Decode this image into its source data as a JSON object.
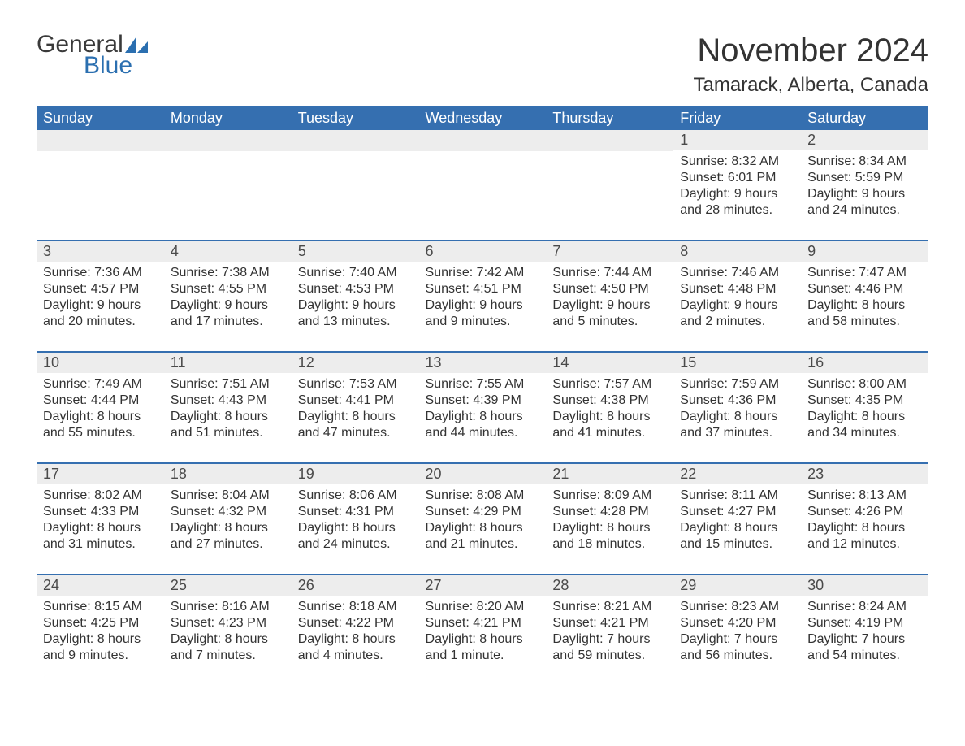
{
  "brand": {
    "word1": "General",
    "word2": "Blue",
    "accent_color": "#2b6fb0"
  },
  "title": "November 2024",
  "location": "Tamarack, Alberta, Canada",
  "colors": {
    "header_bg": "#356fb0",
    "header_text": "#ffffff",
    "daynum_bg": "#ededed",
    "row_border": "#356fb0",
    "body_text": "#333333",
    "page_bg": "#ffffff"
  },
  "day_labels": [
    "Sunday",
    "Monday",
    "Tuesday",
    "Wednesday",
    "Thursday",
    "Friday",
    "Saturday"
  ],
  "weeks": [
    [
      null,
      null,
      null,
      null,
      null,
      {
        "n": "1",
        "sunrise": "8:32 AM",
        "sunset": "6:01 PM",
        "daylight": "9 hours and 28 minutes."
      },
      {
        "n": "2",
        "sunrise": "8:34 AM",
        "sunset": "5:59 PM",
        "daylight": "9 hours and 24 minutes."
      }
    ],
    [
      {
        "n": "3",
        "sunrise": "7:36 AM",
        "sunset": "4:57 PM",
        "daylight": "9 hours and 20 minutes."
      },
      {
        "n": "4",
        "sunrise": "7:38 AM",
        "sunset": "4:55 PM",
        "daylight": "9 hours and 17 minutes."
      },
      {
        "n": "5",
        "sunrise": "7:40 AM",
        "sunset": "4:53 PM",
        "daylight": "9 hours and 13 minutes."
      },
      {
        "n": "6",
        "sunrise": "7:42 AM",
        "sunset": "4:51 PM",
        "daylight": "9 hours and 9 minutes."
      },
      {
        "n": "7",
        "sunrise": "7:44 AM",
        "sunset": "4:50 PM",
        "daylight": "9 hours and 5 minutes."
      },
      {
        "n": "8",
        "sunrise": "7:46 AM",
        "sunset": "4:48 PM",
        "daylight": "9 hours and 2 minutes."
      },
      {
        "n": "9",
        "sunrise": "7:47 AM",
        "sunset": "4:46 PM",
        "daylight": "8 hours and 58 minutes."
      }
    ],
    [
      {
        "n": "10",
        "sunrise": "7:49 AM",
        "sunset": "4:44 PM",
        "daylight": "8 hours and 55 minutes."
      },
      {
        "n": "11",
        "sunrise": "7:51 AM",
        "sunset": "4:43 PM",
        "daylight": "8 hours and 51 minutes."
      },
      {
        "n": "12",
        "sunrise": "7:53 AM",
        "sunset": "4:41 PM",
        "daylight": "8 hours and 47 minutes."
      },
      {
        "n": "13",
        "sunrise": "7:55 AM",
        "sunset": "4:39 PM",
        "daylight": "8 hours and 44 minutes."
      },
      {
        "n": "14",
        "sunrise": "7:57 AM",
        "sunset": "4:38 PM",
        "daylight": "8 hours and 41 minutes."
      },
      {
        "n": "15",
        "sunrise": "7:59 AM",
        "sunset": "4:36 PM",
        "daylight": "8 hours and 37 minutes."
      },
      {
        "n": "16",
        "sunrise": "8:00 AM",
        "sunset": "4:35 PM",
        "daylight": "8 hours and 34 minutes."
      }
    ],
    [
      {
        "n": "17",
        "sunrise": "8:02 AM",
        "sunset": "4:33 PM",
        "daylight": "8 hours and 31 minutes."
      },
      {
        "n": "18",
        "sunrise": "8:04 AM",
        "sunset": "4:32 PM",
        "daylight": "8 hours and 27 minutes."
      },
      {
        "n": "19",
        "sunrise": "8:06 AM",
        "sunset": "4:31 PM",
        "daylight": "8 hours and 24 minutes."
      },
      {
        "n": "20",
        "sunrise": "8:08 AM",
        "sunset": "4:29 PM",
        "daylight": "8 hours and 21 minutes."
      },
      {
        "n": "21",
        "sunrise": "8:09 AM",
        "sunset": "4:28 PM",
        "daylight": "8 hours and 18 minutes."
      },
      {
        "n": "22",
        "sunrise": "8:11 AM",
        "sunset": "4:27 PM",
        "daylight": "8 hours and 15 minutes."
      },
      {
        "n": "23",
        "sunrise": "8:13 AM",
        "sunset": "4:26 PM",
        "daylight": "8 hours and 12 minutes."
      }
    ],
    [
      {
        "n": "24",
        "sunrise": "8:15 AM",
        "sunset": "4:25 PM",
        "daylight": "8 hours and 9 minutes."
      },
      {
        "n": "25",
        "sunrise": "8:16 AM",
        "sunset": "4:23 PM",
        "daylight": "8 hours and 7 minutes."
      },
      {
        "n": "26",
        "sunrise": "8:18 AM",
        "sunset": "4:22 PM",
        "daylight": "8 hours and 4 minutes."
      },
      {
        "n": "27",
        "sunrise": "8:20 AM",
        "sunset": "4:21 PM",
        "daylight": "8 hours and 1 minute."
      },
      {
        "n": "28",
        "sunrise": "8:21 AM",
        "sunset": "4:21 PM",
        "daylight": "7 hours and 59 minutes."
      },
      {
        "n": "29",
        "sunrise": "8:23 AM",
        "sunset": "4:20 PM",
        "daylight": "7 hours and 56 minutes."
      },
      {
        "n": "30",
        "sunrise": "8:24 AM",
        "sunset": "4:19 PM",
        "daylight": "7 hours and 54 minutes."
      }
    ]
  ],
  "labels": {
    "sunrise": "Sunrise:",
    "sunset": "Sunset:",
    "daylight": "Daylight:"
  }
}
